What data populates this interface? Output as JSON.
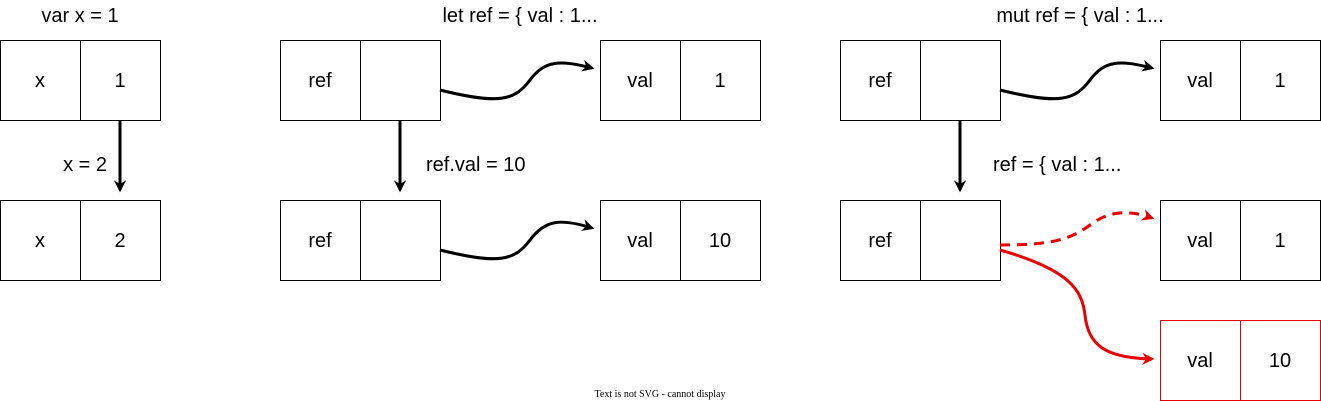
{
  "panels": [
    {
      "caption": "var x = 1",
      "step_label": "x = 2",
      "before": {
        "name": "x",
        "value": "1"
      },
      "after": {
        "name": "x",
        "value": "2"
      }
    },
    {
      "caption": "let ref = { val : 1...",
      "step_label": "ref.val = 10",
      "before_ref": {
        "name": "ref",
        "value": ""
      },
      "before_obj": {
        "name": "val",
        "value": "1"
      },
      "after_ref": {
        "name": "ref",
        "value": ""
      },
      "after_obj": {
        "name": "val",
        "value": "10"
      }
    },
    {
      "caption": "mut ref = { val : 1...",
      "step_label": "ref = { val : 1...",
      "before_ref": {
        "name": "ref",
        "value": ""
      },
      "before_obj": {
        "name": "val",
        "value": "1"
      },
      "after_ref": {
        "name": "ref",
        "value": ""
      },
      "old_obj": {
        "name": "val",
        "value": "1"
      },
      "new_obj": {
        "name": "val",
        "value": "10"
      }
    }
  ],
  "footer_note": "Text is not SVG - cannot display",
  "colors": {
    "stroke": "#000000",
    "highlight": "#e60000"
  }
}
